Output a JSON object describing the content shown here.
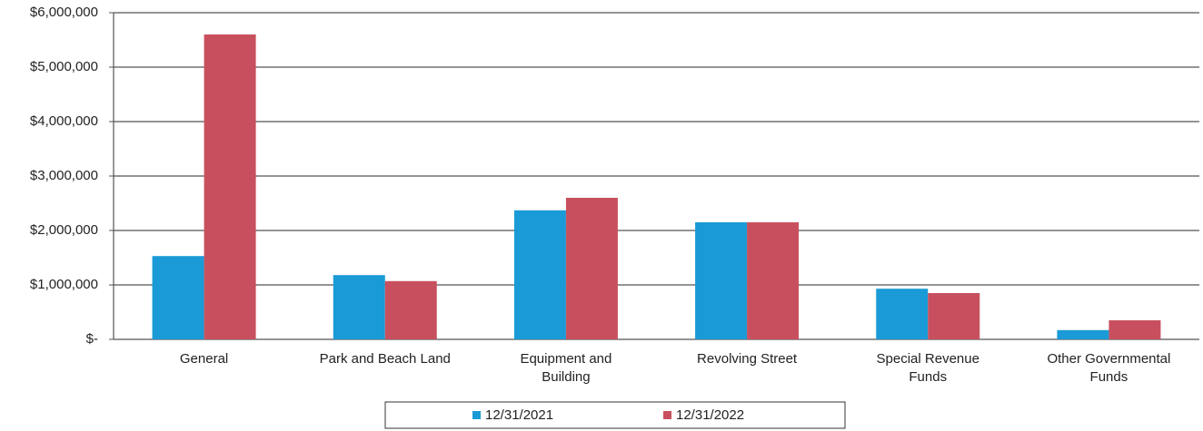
{
  "chart_data": {
    "type": "bar",
    "categories": [
      "General",
      "Park and Beach Land",
      "Equipment and\nBuilding",
      "Revolving Street",
      "Special Revenue\nFunds",
      "Other Governmental\nFunds"
    ],
    "series": [
      {
        "name": "12/31/2021",
        "color": "#1a9ad6",
        "values": [
          1530000,
          1180000,
          2370000,
          2150000,
          930000,
          170000
        ]
      },
      {
        "name": "12/31/2022",
        "color": "#c8505e",
        "values": [
          5600000,
          1070000,
          2600000,
          2150000,
          850000,
          350000
        ]
      }
    ],
    "ylim": [
      0,
      6000000
    ],
    "yticks": [
      {
        "value": 0,
        "label": "$-"
      },
      {
        "value": 1000000,
        "label": "$1,000,000"
      },
      {
        "value": 2000000,
        "label": "$2,000,000"
      },
      {
        "value": 3000000,
        "label": "$3,000,000"
      },
      {
        "value": 4000000,
        "label": "$4,000,000"
      },
      {
        "value": 5000000,
        "label": "$5,000,000"
      },
      {
        "value": 6000000,
        "label": "$6,000,000"
      }
    ],
    "grid": true,
    "legend": "bottom"
  }
}
